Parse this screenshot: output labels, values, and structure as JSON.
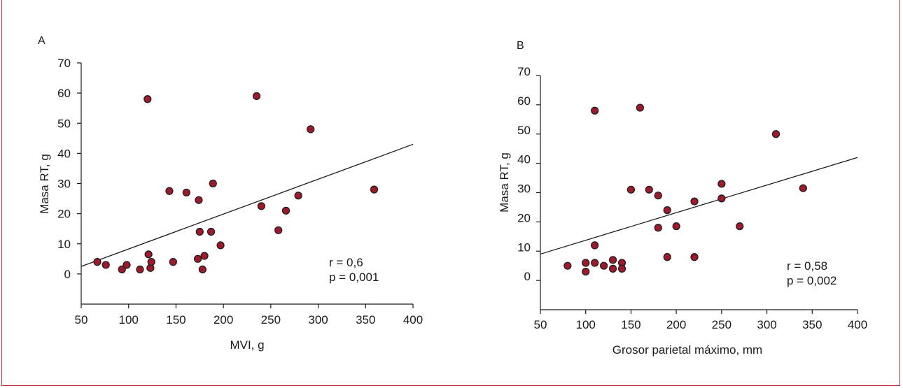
{
  "colors": {
    "frame": "#c0303f",
    "point_fill": "#9b1b2c",
    "point_stroke": "#1a1a1a",
    "line": "#1a1a1a"
  },
  "chart_data": [
    {
      "panel": "A",
      "type": "scatter",
      "xlabel": "MVI, g",
      "ylabel": "Masa RT, g",
      "xlim": [
        50,
        400
      ],
      "ylim": [
        -10,
        70
      ],
      "xticks": [
        50,
        100,
        150,
        200,
        250,
        300,
        350,
        400
      ],
      "yticks": [
        0,
        10,
        20,
        30,
        40,
        50,
        60,
        70
      ],
      "points": [
        [
          67,
          4
        ],
        [
          76,
          3
        ],
        [
          93,
          1.5
        ],
        [
          98,
          3
        ],
        [
          112,
          1.5
        ],
        [
          120,
          58
        ],
        [
          121,
          6.5
        ],
        [
          123,
          2
        ],
        [
          124,
          4
        ],
        [
          143,
          27.5
        ],
        [
          147,
          4
        ],
        [
          161,
          27
        ],
        [
          173,
          5
        ],
        [
          174,
          24.5
        ],
        [
          175,
          14
        ],
        [
          178,
          1.5
        ],
        [
          180,
          6
        ],
        [
          187,
          14
        ],
        [
          189,
          30
        ],
        [
          197,
          9.5
        ],
        [
          235,
          59
        ],
        [
          240,
          22.5
        ],
        [
          258,
          14.5
        ],
        [
          266,
          21
        ],
        [
          279,
          26
        ],
        [
          292,
          48
        ],
        [
          359,
          28
        ]
      ],
      "fit_line": [
        [
          50,
          2.5
        ],
        [
          400,
          43
        ]
      ],
      "annotation": {
        "r": "r = 0,6",
        "p": "p = 0,001"
      }
    },
    {
      "panel": "B",
      "type": "scatter",
      "xlabel": "Grosor parietal máximo, mm",
      "ylabel": "Masa RT, g",
      "xlim": [
        50,
        400
      ],
      "ylim": [
        -10,
        70
      ],
      "xticks": [
        50,
        100,
        150,
        200,
        250,
        300,
        350,
        400
      ],
      "yticks": [
        0,
        10,
        20,
        30,
        40,
        50,
        60,
        70
      ],
      "points": [
        [
          80,
          5
        ],
        [
          100,
          6
        ],
        [
          100,
          3
        ],
        [
          110,
          12
        ],
        [
          110,
          6
        ],
        [
          110,
          58
        ],
        [
          120,
          5
        ],
        [
          130,
          7
        ],
        [
          130,
          4
        ],
        [
          140,
          6
        ],
        [
          140,
          4
        ],
        [
          150,
          31
        ],
        [
          160,
          59
        ],
        [
          170,
          31
        ],
        [
          180,
          29
        ],
        [
          180,
          18
        ],
        [
          190,
          24
        ],
        [
          190,
          8
        ],
        [
          200,
          18.5
        ],
        [
          220,
          8
        ],
        [
          220,
          27
        ],
        [
          250,
          33
        ],
        [
          250,
          28
        ],
        [
          270,
          18.5
        ],
        [
          310,
          50
        ],
        [
          340,
          31.5
        ]
      ],
      "fit_line": [
        [
          50,
          9
        ],
        [
          400,
          42
        ]
      ],
      "annotation": {
        "r": "r = 0,58",
        "p": "p = 0,002"
      }
    }
  ]
}
